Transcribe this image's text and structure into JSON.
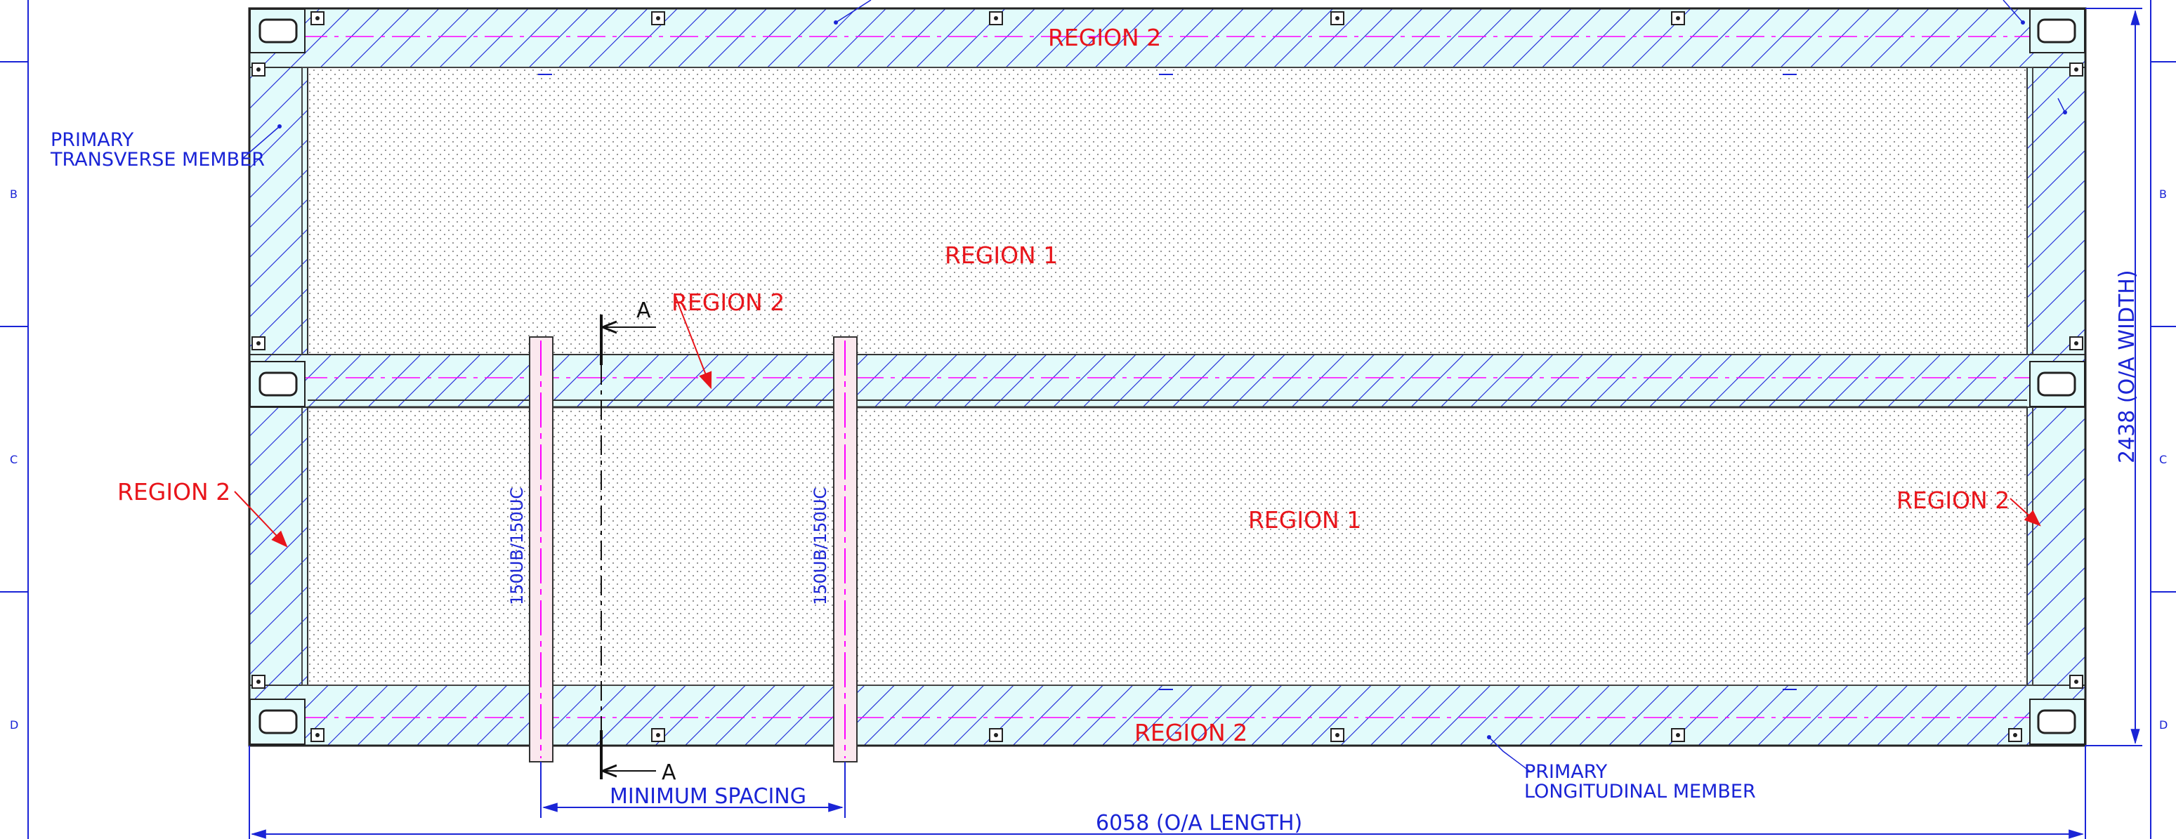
{
  "regions": {
    "top_member": "REGION 2",
    "upper_deck": "REGION 1",
    "center_member": "REGION 2",
    "left_member": "REGION 2",
    "lower_deck": "REGION 1",
    "right_member": "REGION 2",
    "bottom_member": "REGION 2"
  },
  "labels": {
    "transverse_line1": "PRIMARY",
    "transverse_line2": "TRANSVERSE MEMBER",
    "longitudinal_line1": "PRIMARY",
    "longitudinal_line2": "LONGITUDINAL MEMBER",
    "beam_left": "150UB/150UC",
    "beam_right": "150UB/150UC"
  },
  "section": {
    "top": "A",
    "bottom": "A"
  },
  "dimensions": {
    "spacing": "MINIMUM SPACING",
    "length": "6058 (O/A LENGTH)",
    "width": "2438 (O/A WIDTH)"
  },
  "zones_left": [
    "B",
    "C",
    "D"
  ],
  "zones_right": [
    "B",
    "C",
    "D"
  ],
  "colors": {
    "outline": "#1a24d6",
    "region_text": "#e8141a",
    "member_fill": "#e2fbfb",
    "beam_line": "#ff00ff",
    "dots": "#8a8a8a"
  }
}
